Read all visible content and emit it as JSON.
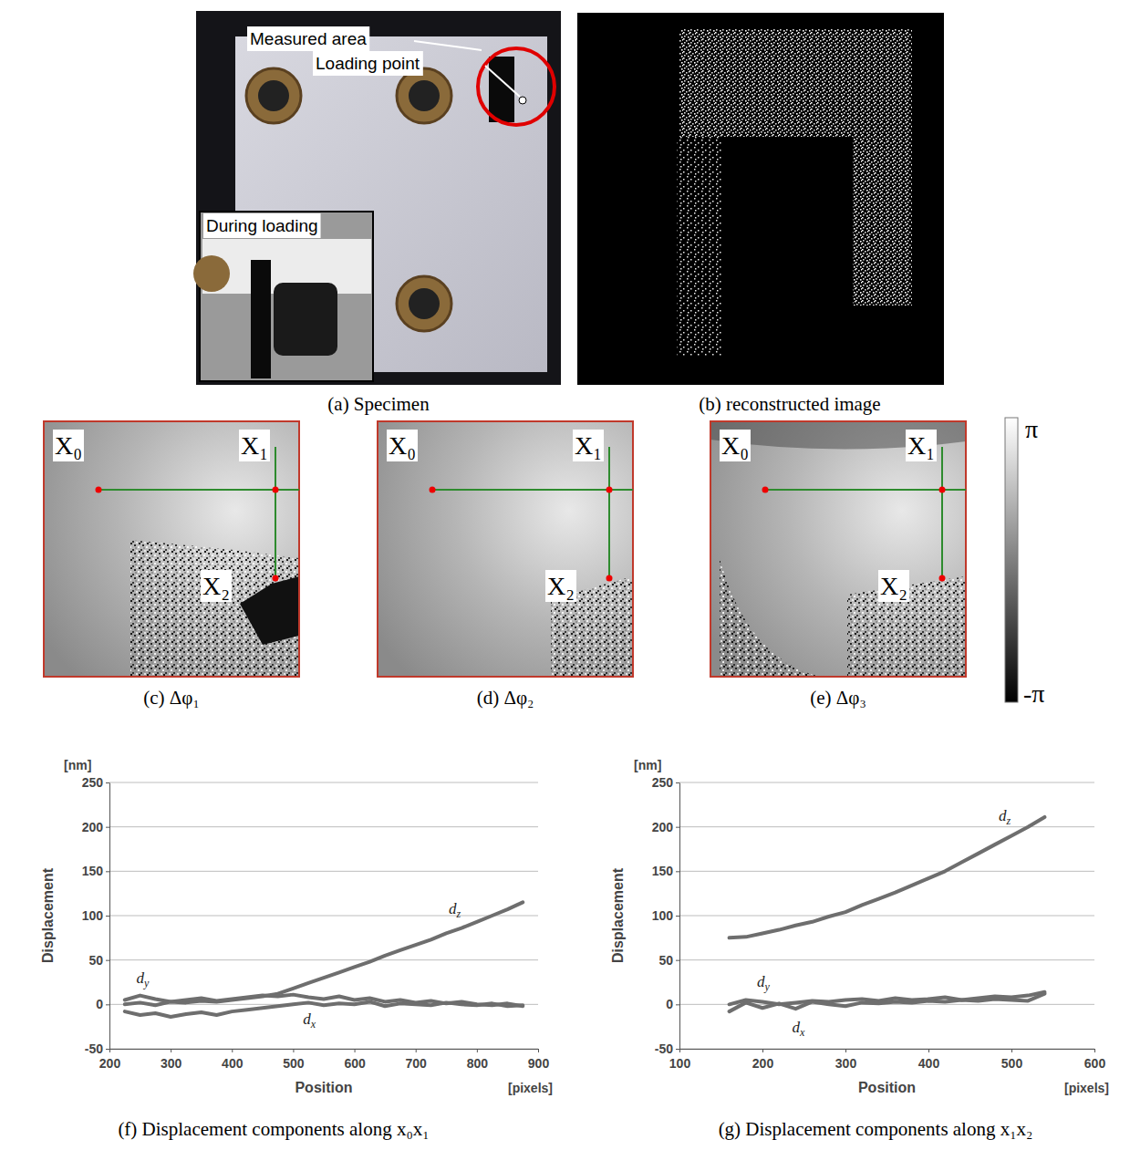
{
  "panels": {
    "a": {
      "caption": "(a) Specimen",
      "labels": [
        "Measured area",
        "Loading point",
        "During loading"
      ]
    },
    "b": {
      "caption": "(b) reconstructed image"
    },
    "phase_maps": [
      {
        "caption": "(c) Δφ₁",
        "points": [
          "X₀",
          "X₁",
          "X₂"
        ]
      },
      {
        "caption": "(d) Δφ₂",
        "points": [
          "X₀",
          "X₁",
          "X₂"
        ]
      },
      {
        "caption": "(e) Δφ₃",
        "points": [
          "X₀",
          "X₁",
          "X₂"
        ]
      }
    ],
    "colorbar": {
      "top": "π",
      "bottom": "-π"
    }
  },
  "chart_data": [
    {
      "type": "line",
      "caption": "(f) Displacement components along x₀x₁",
      "y_label": "Displacement",
      "y_unit": "[nm]",
      "x_label": "Position",
      "x_unit": "[pixels]",
      "x": [
        225,
        250,
        275,
        300,
        325,
        350,
        375,
        400,
        425,
        450,
        475,
        500,
        525,
        550,
        575,
        600,
        625,
        650,
        675,
        700,
        725,
        750,
        775,
        800,
        825,
        850,
        875
      ],
      "series": [
        {
          "name": "dz",
          "color": "#6e6e6e",
          "values": [
            0,
            2,
            -1,
            3,
            2,
            4,
            3,
            5,
            7,
            9,
            12,
            18,
            24,
            30,
            36,
            42,
            48,
            55,
            61,
            67,
            73,
            80,
            86,
            93,
            100,
            107,
            115
          ]
        },
        {
          "name": "dy",
          "color": "#6e6e6e",
          "values": [
            5,
            10,
            6,
            3,
            5,
            7,
            4,
            6,
            8,
            10,
            9,
            11,
            8,
            6,
            9,
            5,
            7,
            3,
            5,
            2,
            4,
            1,
            3,
            0,
            -1,
            1,
            -2
          ]
        },
        {
          "name": "dx",
          "color": "#6e6e6e",
          "values": [
            -8,
            -12,
            -10,
            -14,
            -11,
            -9,
            -12,
            -8,
            -6,
            -4,
            -2,
            0,
            2,
            -1,
            1,
            0,
            3,
            -2,
            1,
            0,
            -1,
            2,
            0,
            -1,
            1,
            -2,
            -1
          ]
        }
      ],
      "xlim": [
        200,
        900
      ],
      "xticks": [
        200,
        300,
        400,
        500,
        600,
        700,
        800,
        900
      ],
      "ylim": [
        -50,
        250
      ],
      "yticks": [
        -50,
        0,
        50,
        100,
        150,
        200,
        250
      ],
      "grid": "y"
    },
    {
      "type": "line",
      "caption": "(g) Displacement components along x₁x₂",
      "y_label": "Displacement",
      "y_unit": "[nm]",
      "x_label": "Position",
      "x_unit": "[pixels]",
      "x": [
        160,
        180,
        200,
        220,
        240,
        260,
        280,
        300,
        320,
        340,
        360,
        380,
        400,
        420,
        440,
        460,
        480,
        500,
        520,
        540
      ],
      "series": [
        {
          "name": "dz",
          "color": "#6e6e6e",
          "values": [
            75,
            76,
            80,
            84,
            89,
            93,
            99,
            104,
            112,
            119,
            126,
            134,
            142,
            150,
            160,
            170,
            180,
            190,
            200,
            211
          ]
        },
        {
          "name": "dy",
          "color": "#6e6e6e",
          "values": [
            0,
            5,
            3,
            0,
            2,
            4,
            3,
            5,
            6,
            4,
            7,
            5,
            6,
            8,
            5,
            7,
            9,
            8,
            10,
            14
          ]
        },
        {
          "name": "dx",
          "color": "#6e6e6e",
          "values": [
            -8,
            2,
            -4,
            1,
            -5,
            3,
            0,
            -2,
            2,
            1,
            3,
            2,
            4,
            3,
            5,
            4,
            6,
            5,
            4,
            12
          ]
        }
      ],
      "xlim": [
        100,
        600
      ],
      "xticks": [
        100,
        200,
        300,
        400,
        500,
        600
      ],
      "ylim": [
        -50,
        250
      ],
      "yticks": [
        -50,
        0,
        50,
        100,
        150,
        200,
        250
      ],
      "grid": "y"
    }
  ]
}
